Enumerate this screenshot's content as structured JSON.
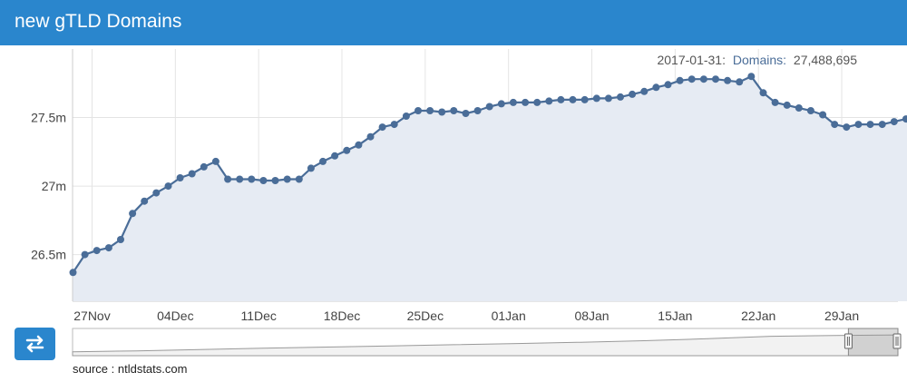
{
  "header": {
    "title": "new gTLD Domains"
  },
  "tooltip": {
    "date": "2017-01-31:",
    "series_name": "Domains:",
    "value": "27,488,695"
  },
  "source": "source : ntldstats.com",
  "colors": {
    "header": "#2a86cd",
    "line": "#4a6d98",
    "area": "#e6ebf3",
    "grid": "#e4e4e4",
    "navigator_button": "#2a86cd"
  },
  "icons": {
    "toggle": "swap-arrows-icon"
  },
  "chart_data": {
    "type": "area",
    "series": [
      {
        "name": "Domains",
        "values": [
          26.37,
          26.5,
          26.53,
          26.55,
          26.61,
          26.8,
          26.89,
          26.95,
          27.0,
          27.06,
          27.09,
          27.14,
          27.18,
          27.05,
          27.05,
          27.05,
          27.04,
          27.04,
          27.05,
          27.05,
          27.13,
          27.18,
          27.22,
          27.26,
          27.3,
          27.36,
          27.43,
          27.45,
          27.51,
          27.55,
          27.55,
          27.54,
          27.55,
          27.53,
          27.55,
          27.58,
          27.6,
          27.61,
          27.61,
          27.61,
          27.62,
          27.63,
          27.63,
          27.63,
          27.64,
          27.64,
          27.65,
          27.67,
          27.69,
          27.72,
          27.74,
          27.77,
          27.78,
          27.78,
          27.78,
          27.77,
          27.76,
          27.8,
          27.68,
          27.61,
          27.59,
          27.57,
          27.55,
          27.52,
          27.45,
          27.43,
          27.45,
          27.45,
          27.45,
          27.47,
          27.49,
          27.49
        ]
      }
    ],
    "x_start_index": 0,
    "x_ticks": [
      {
        "label": "27Nov",
        "index": 1.6
      },
      {
        "label": "04Dec",
        "index": 8.6
      },
      {
        "label": "11Dec",
        "index": 15.6
      },
      {
        "label": "18Dec",
        "index": 22.6
      },
      {
        "label": "25Dec",
        "index": 29.6
      },
      {
        "label": "01Jan",
        "index": 36.6
      },
      {
        "label": "08Jan",
        "index": 43.6
      },
      {
        "label": "15Jan",
        "index": 50.6
      },
      {
        "label": "22Jan",
        "index": 57.6
      },
      {
        "label": "29Jan",
        "index": 64.6
      }
    ],
    "y_ticks": [
      {
        "label": "26.5m",
        "value": 26.5
      },
      {
        "label": "27m",
        "value": 27.0
      },
      {
        "label": "27.5m",
        "value": 27.5
      }
    ],
    "ylim": [
      26.16,
      28.0
    ],
    "grid": true,
    "navigator": {
      "selected_fraction": [
        0.94,
        1.0
      ]
    }
  }
}
